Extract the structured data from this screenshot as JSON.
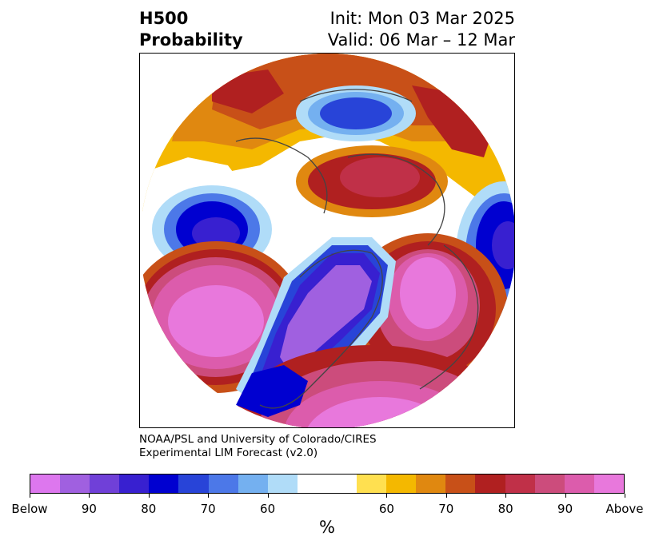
{
  "header": {
    "title_line1": "H500",
    "title_line2": "Probability",
    "init_text": "Init: Mon 03 Mar 2025",
    "valid_text": "Valid: 06 Mar – 12 Mar"
  },
  "credit": {
    "line1": "NOAA/PSL and University of Colorado/CIRES",
    "line2": "Experimental LIM Forecast (v2.0)"
  },
  "colorbar": {
    "colors": [
      "#dd77ee",
      "#a060e0",
      "#7040d8",
      "#3820d0",
      "#0000d0",
      "#2844d8",
      "#4c78e8",
      "#74b0f0",
      "#b0dcf8",
      "#ffffff",
      "#ffffff",
      "#ffe050",
      "#f4b800",
      "#e08810",
      "#c85018",
      "#b02020",
      "#c03048",
      "#cc4c7c",
      "#dc5cac",
      "#e878dc"
    ],
    "tick_labels": [
      "Below",
      "90",
      "80",
      "70",
      "60",
      "60",
      "70",
      "80",
      "90",
      "Above"
    ],
    "unit_label": "%"
  }
}
